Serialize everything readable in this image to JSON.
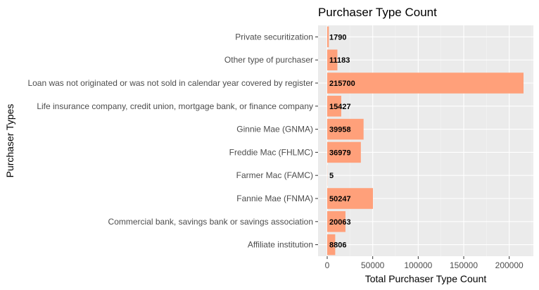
{
  "chart_data": {
    "type": "bar",
    "orientation": "horizontal",
    "title": "Purchaser Type Count",
    "xlabel": "Total Purchaser Type Count",
    "ylabel": "Purchaser Types",
    "categories": [
      "Private securitization",
      "Other type of purchaser",
      "Loan was not originated or was not sold in calendar year covered by register",
      "Life insurance company, credit union, mortgage bank, or finance company",
      "Ginnie Mae (GNMA)",
      "Freddie Mac (FHLMC)",
      "Farmer Mac (FAMC)",
      "Fannie Mae (FNMA)",
      "Commercial bank, savings bank or savings association",
      "Affiliate institution"
    ],
    "values": [
      1790,
      11183,
      215700,
      15427,
      39958,
      36979,
      5,
      50247,
      20063,
      8806
    ],
    "data_labels": [
      "1790",
      "11183",
      "215700",
      "15427",
      "39958",
      "36979",
      "5",
      "50247",
      "20063",
      "8806"
    ],
    "xticks": [
      0,
      50000,
      100000,
      150000,
      200000
    ],
    "xtick_labels": [
      "0",
      "50000",
      "100000",
      "150000",
      "200000"
    ],
    "xlim": [
      0,
      226485
    ],
    "grid": true,
    "legend": "none",
    "colors": {
      "bar": "#ffa07a",
      "panel": "#ebebeb",
      "grid_major": "#ffffff",
      "grid_minor": "#f5f5f5"
    }
  }
}
